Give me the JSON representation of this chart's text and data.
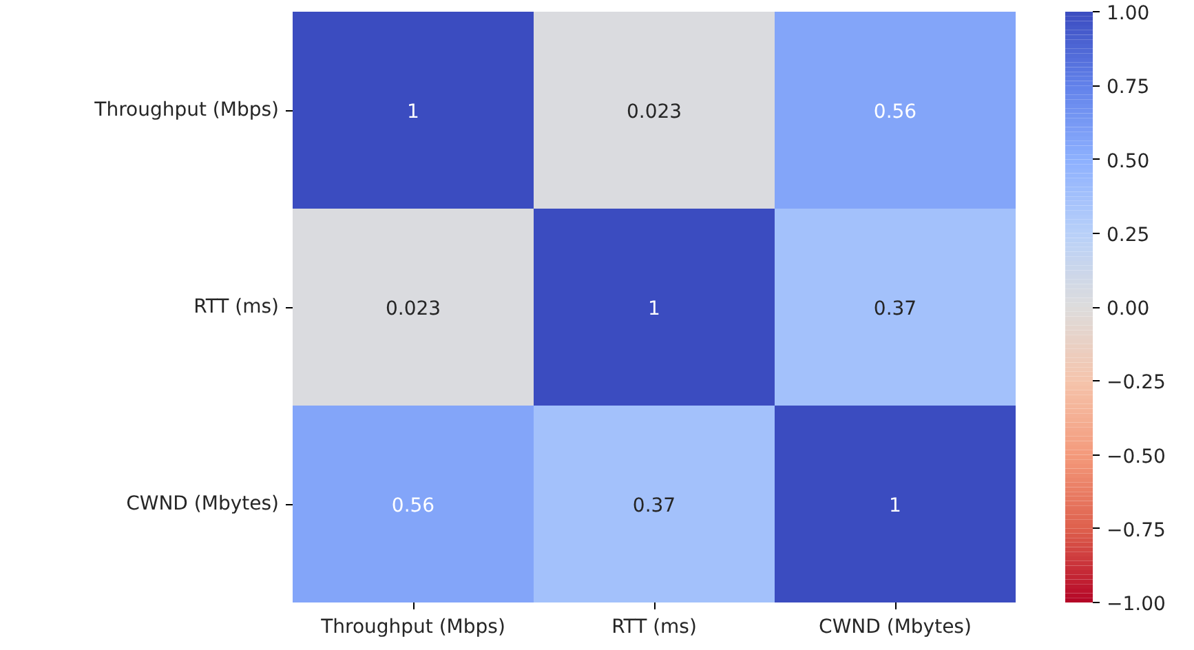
{
  "chart_data": {
    "type": "heatmap",
    "categories": [
      "Throughput (Mbps)",
      "RTT (ms)",
      "CWND (Mbytes)"
    ],
    "y_categories": [
      "Throughput (Mbps)",
      "RTT (ms)",
      "CWND (Mbytes)"
    ],
    "cells": [
      [
        1,
        0.023,
        0.56
      ],
      [
        0.023,
        1,
        0.37
      ],
      [
        0.56,
        0.37,
        1
      ]
    ],
    "data_labels": true,
    "clim": [
      -1.0,
      1.0
    ],
    "cticks": [
      {
        "value": -1,
        "label": "−1.00"
      },
      {
        "value": -0.75,
        "label": "−0.75"
      },
      {
        "value": -0.5,
        "label": "−0.50"
      },
      {
        "value": -0.25,
        "label": "−0.25"
      },
      {
        "value": 0,
        "label": "0.00"
      },
      {
        "value": 0.25,
        "label": "0.25"
      },
      {
        "value": 0.5,
        "label": "0.50"
      },
      {
        "value": 0.75,
        "label": "0.75"
      },
      {
        "value": 1,
        "label": "1.00"
      }
    ]
  }
}
